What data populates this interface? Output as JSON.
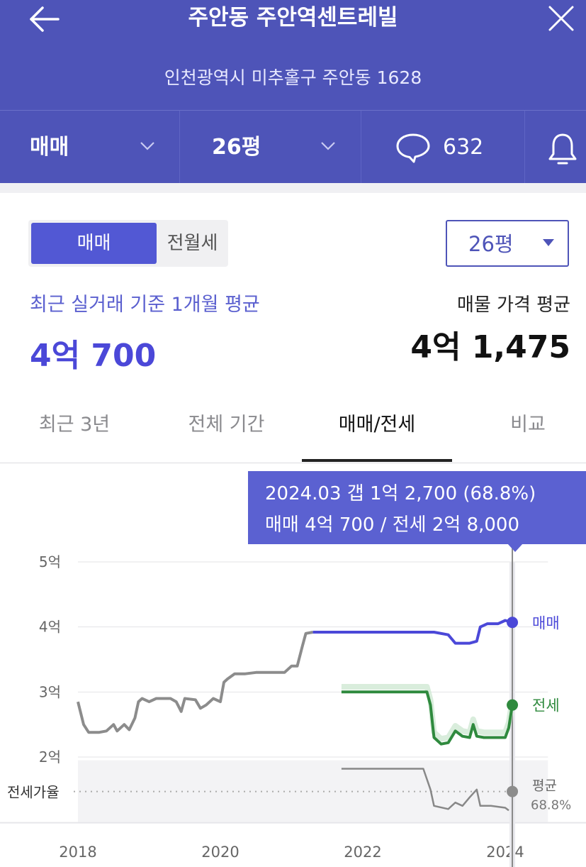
{
  "header": {
    "title": "주안동 주안역센트레빌",
    "address": "인천광역시 미추홀구 주안동 1628",
    "filters": {
      "trade_type": "매매",
      "size": "26평",
      "comment_count": "632"
    }
  },
  "segment": {
    "options": [
      "매매",
      "전월세"
    ],
    "selected": "매매"
  },
  "size_select": {
    "value": "26평"
  },
  "summary": {
    "recent_label": "최근 실거래 기준 1개월 평균",
    "recent_value": "4억 700",
    "listing_label": "매물 가격 평균",
    "listing_value": "4억 1,475"
  },
  "tabs": [
    {
      "label": "최근 3년"
    },
    {
      "label": "전체 기간"
    },
    {
      "label": "매매/전세"
    },
    {
      "label": "비교"
    }
  ],
  "active_tab": "매매/전세",
  "tooltip": {
    "line1": "2024.03  갭 1억 2,700 (68.8%)",
    "line2": "매매 4억 700 / 전세 2억 8,000"
  },
  "chart_data": {
    "type": "line",
    "y_tick_labels": [
      "5억",
      "4억",
      "3억",
      "2억"
    ],
    "y_ticks": [
      5,
      4,
      3,
      2
    ],
    "x_tick_labels": [
      "2018",
      "2020",
      "2022",
      "2024"
    ],
    "x_ticks": [
      2018,
      2020,
      2022,
      2024
    ],
    "xlim": [
      2018,
      2024.6
    ],
    "ylim": [
      1.0,
      5.0
    ],
    "ratio_band_label": "전세가율",
    "series": [
      {
        "name": "매매",
        "color": "#4b48d8",
        "points": [
          [
            2018.0,
            2.85
          ],
          [
            2018.08,
            2.5
          ],
          [
            2018.15,
            2.38
          ],
          [
            2018.3,
            2.38
          ],
          [
            2018.4,
            2.4
          ],
          [
            2018.5,
            2.5
          ],
          [
            2018.55,
            2.4
          ],
          [
            2018.65,
            2.5
          ],
          [
            2018.72,
            2.42
          ],
          [
            2018.8,
            2.6
          ],
          [
            2018.85,
            2.85
          ],
          [
            2018.9,
            2.9
          ],
          [
            2019.0,
            2.85
          ],
          [
            2019.1,
            2.9
          ],
          [
            2019.3,
            2.9
          ],
          [
            2019.38,
            2.85
          ],
          [
            2019.45,
            2.7
          ],
          [
            2019.5,
            2.9
          ],
          [
            2019.65,
            2.88
          ],
          [
            2019.72,
            2.75
          ],
          [
            2019.8,
            2.8
          ],
          [
            2019.9,
            2.9
          ],
          [
            2020.0,
            2.85
          ],
          [
            2020.05,
            3.15
          ],
          [
            2020.1,
            3.2
          ],
          [
            2020.2,
            3.28
          ],
          [
            2020.35,
            3.28
          ],
          [
            2020.5,
            3.3
          ],
          [
            2020.7,
            3.3
          ],
          [
            2020.9,
            3.3
          ],
          [
            2021.0,
            3.4
          ],
          [
            2021.08,
            3.4
          ],
          [
            2021.15,
            3.7
          ],
          [
            2021.2,
            3.9
          ],
          [
            2021.3,
            3.92
          ],
          [
            2022.0,
            3.92
          ],
          [
            2022.5,
            3.92
          ],
          [
            2023.0,
            3.92
          ],
          [
            2023.2,
            3.88
          ],
          [
            2023.3,
            3.75
          ],
          [
            2023.5,
            3.75
          ],
          [
            2023.6,
            3.78
          ],
          [
            2023.65,
            4.0
          ],
          [
            2023.75,
            4.05
          ],
          [
            2023.9,
            4.05
          ],
          [
            2024.0,
            4.1
          ],
          [
            2024.1,
            4.07
          ]
        ],
        "highlight_from": 2021.5
      },
      {
        "name": "전세",
        "color": "#2f8a3e",
        "points": [
          [
            2021.7,
            3.0
          ],
          [
            2022.0,
            3.0
          ],
          [
            2022.5,
            3.0
          ],
          [
            2022.9,
            3.0
          ],
          [
            2022.95,
            2.8
          ],
          [
            2023.0,
            2.3
          ],
          [
            2023.1,
            2.2
          ],
          [
            2023.2,
            2.22
          ],
          [
            2023.3,
            2.4
          ],
          [
            2023.4,
            2.32
          ],
          [
            2023.5,
            2.3
          ],
          [
            2023.55,
            2.5
          ],
          [
            2023.6,
            2.32
          ],
          [
            2023.7,
            2.3
          ],
          [
            2024.0,
            2.3
          ],
          [
            2024.05,
            2.45
          ],
          [
            2024.1,
            2.8
          ]
        ]
      },
      {
        "name": "평균",
        "color": "#888888",
        "points": [
          [
            2021.7,
            1.82
          ],
          [
            2022.2,
            1.82
          ],
          [
            2022.85,
            1.82
          ],
          [
            2022.95,
            1.5
          ],
          [
            2023.0,
            1.25
          ],
          [
            2023.2,
            1.2
          ],
          [
            2023.3,
            1.3
          ],
          [
            2023.4,
            1.25
          ],
          [
            2023.5,
            1.38
          ],
          [
            2023.6,
            1.5
          ],
          [
            2023.65,
            1.25
          ],
          [
            2023.8,
            1.25
          ],
          [
            2024.0,
            1.22
          ],
          [
            2024.05,
            1.18
          ]
        ]
      }
    ],
    "end_labels": [
      {
        "series": "매매",
        "label": "매매"
      },
      {
        "series": "전세",
        "label": "전세"
      },
      {
        "series": "평균",
        "label": "평균",
        "sub": "68.8%"
      }
    ],
    "cursor_x": 2024.1
  },
  "colors": {
    "header_bg": "#4e54b8",
    "accent": "#5258d4",
    "recent_value": "#4b48d8"
  }
}
